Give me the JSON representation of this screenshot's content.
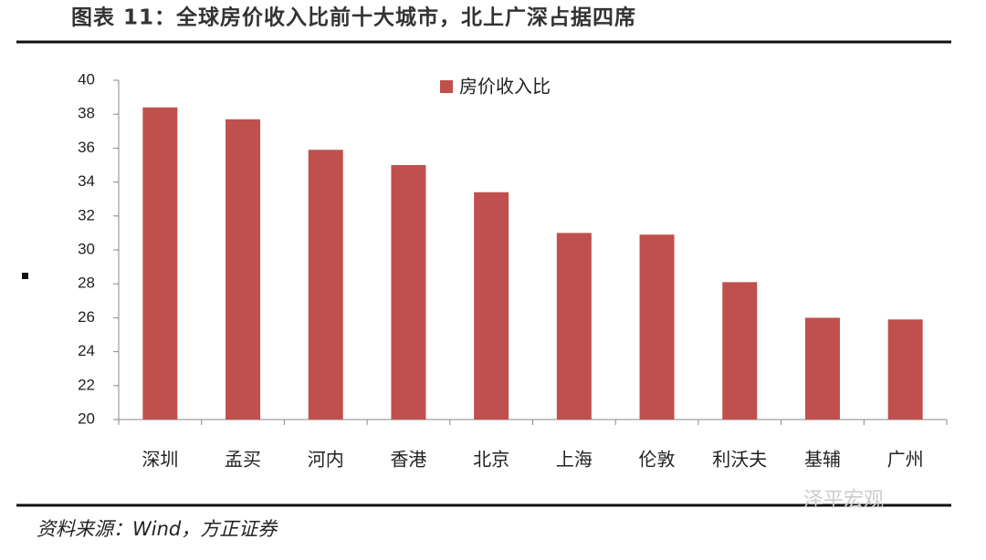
{
  "chart_data": {
    "type": "bar",
    "title": "图表 11：全球房价收入比前十大城市，北上广深占据四席",
    "categories": [
      "深圳",
      "孟买",
      "河内",
      "香港",
      "北京",
      "上海",
      "伦敦",
      "利沃夫",
      "基辅",
      "广州"
    ],
    "series": [
      {
        "name": "房价收入比",
        "color": "#c0504d",
        "values": [
          38.4,
          37.7,
          35.9,
          35.0,
          33.4,
          31.0,
          30.9,
          28.1,
          26.0,
          25.9
        ]
      }
    ],
    "ylim": [
      20,
      40
    ],
    "yticks": [
      20,
      22,
      24,
      26,
      28,
      30,
      32,
      34,
      36,
      38,
      40
    ],
    "legend": "top",
    "source": "资料来源：Wind，方正证券",
    "watermark": "泽平宏观"
  }
}
